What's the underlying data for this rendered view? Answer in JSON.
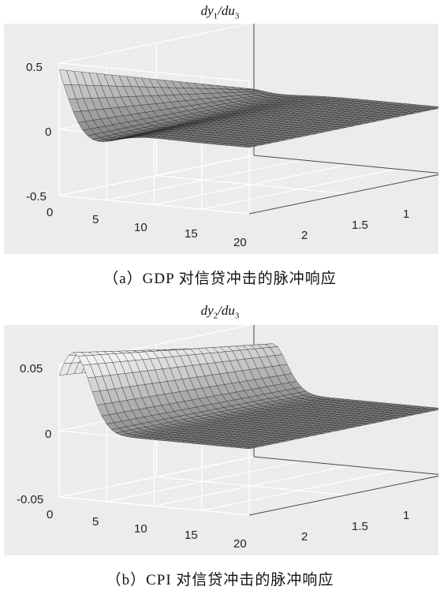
{
  "panels": [
    {
      "title_prefix": "dy",
      "title_sub1": "1",
      "title_mid": "/du",
      "title_sub2": "3",
      "caption": "（a）GDP 对信贷冲击的脉冲响应",
      "z_ticks": [
        "0.5",
        "0",
        "-0.5"
      ],
      "x_ticks": [
        "0",
        "5",
        "10",
        "15",
        "20"
      ],
      "y_ticks": [
        "1",
        "1.5",
        "2"
      ]
    },
    {
      "title_prefix": "dy",
      "title_sub1": "2",
      "title_mid": "/du",
      "title_sub2": "3",
      "caption": "（b）CPI 对信贷冲击的脉冲响应",
      "z_ticks": [
        "0.05",
        "0",
        "-0.05"
      ],
      "x_ticks": [
        "0",
        "5",
        "10",
        "15",
        "20"
      ],
      "y_ticks": [
        "1",
        "1.5",
        "2"
      ]
    }
  ],
  "chart_data": [
    {
      "type": "surface",
      "title": "dy1/du3",
      "x_range": [
        0,
        20
      ],
      "y_range": [
        1,
        2
      ],
      "z_range": [
        -0.5,
        0.5
      ],
      "x_ticks": [
        0,
        5,
        10,
        15,
        20
      ],
      "y_ticks": [
        1,
        1.5,
        2
      ],
      "z_ticks": [
        -0.5,
        0,
        0.5
      ],
      "grid": true,
      "colormap": "grayscale"
    },
    {
      "type": "surface",
      "title": "dy2/du3",
      "x_range": [
        0,
        20
      ],
      "y_range": [
        1,
        2
      ],
      "z_range": [
        -0.05,
        0.05
      ],
      "x_ticks": [
        0,
        5,
        10,
        15,
        20
      ],
      "y_ticks": [
        1,
        1.5,
        2
      ],
      "z_ticks": [
        -0.05,
        0,
        0.05
      ],
      "grid": true,
      "colormap": "grayscale"
    }
  ]
}
